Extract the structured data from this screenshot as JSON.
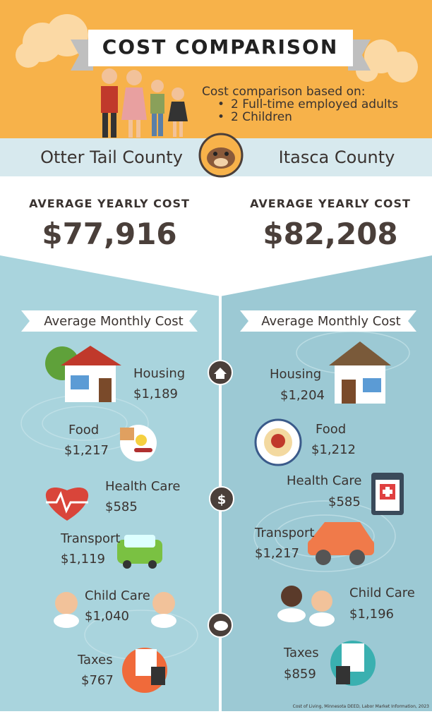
{
  "header": {
    "title": "COST COMPARISON",
    "basis_label": "Cost comparison based on:",
    "basis_items": [
      "2 Full-time employed adults",
      "2 Children"
    ]
  },
  "counties": [
    {
      "name": "Otter Tail County",
      "yearly_label": "AVERAGE YEARLY COST",
      "yearly_cost": "$77,916",
      "monthly_label": "Average Monthly Cost",
      "items": [
        {
          "label": "Housing",
          "cost": "$1,189"
        },
        {
          "label": "Food",
          "cost": "$1,217"
        },
        {
          "label": "Health Care",
          "cost": "$585"
        },
        {
          "label": "Transport",
          "cost": "$1,119"
        },
        {
          "label": "Child Care",
          "cost": "$1,040"
        },
        {
          "label": "Taxes",
          "cost": "$767"
        }
      ]
    },
    {
      "name": "Itasca County",
      "yearly_label": "AVERAGE YEARLY COST",
      "yearly_cost": "$82,208",
      "monthly_label": "Average Monthly Cost",
      "items": [
        {
          "label": "Housing",
          "cost": "$1,204"
        },
        {
          "label": "Food",
          "cost": "$1,212"
        },
        {
          "label": "Health Care",
          "cost": "$585"
        },
        {
          "label": "Transport",
          "cost": "$1,217"
        },
        {
          "label": "Child Care",
          "cost": "$1,196"
        },
        {
          "label": "Taxes",
          "cost": "$859"
        }
      ]
    }
  ],
  "source": "Cost of Living, Minnesota DEED, Labor Market Information, 2023"
}
